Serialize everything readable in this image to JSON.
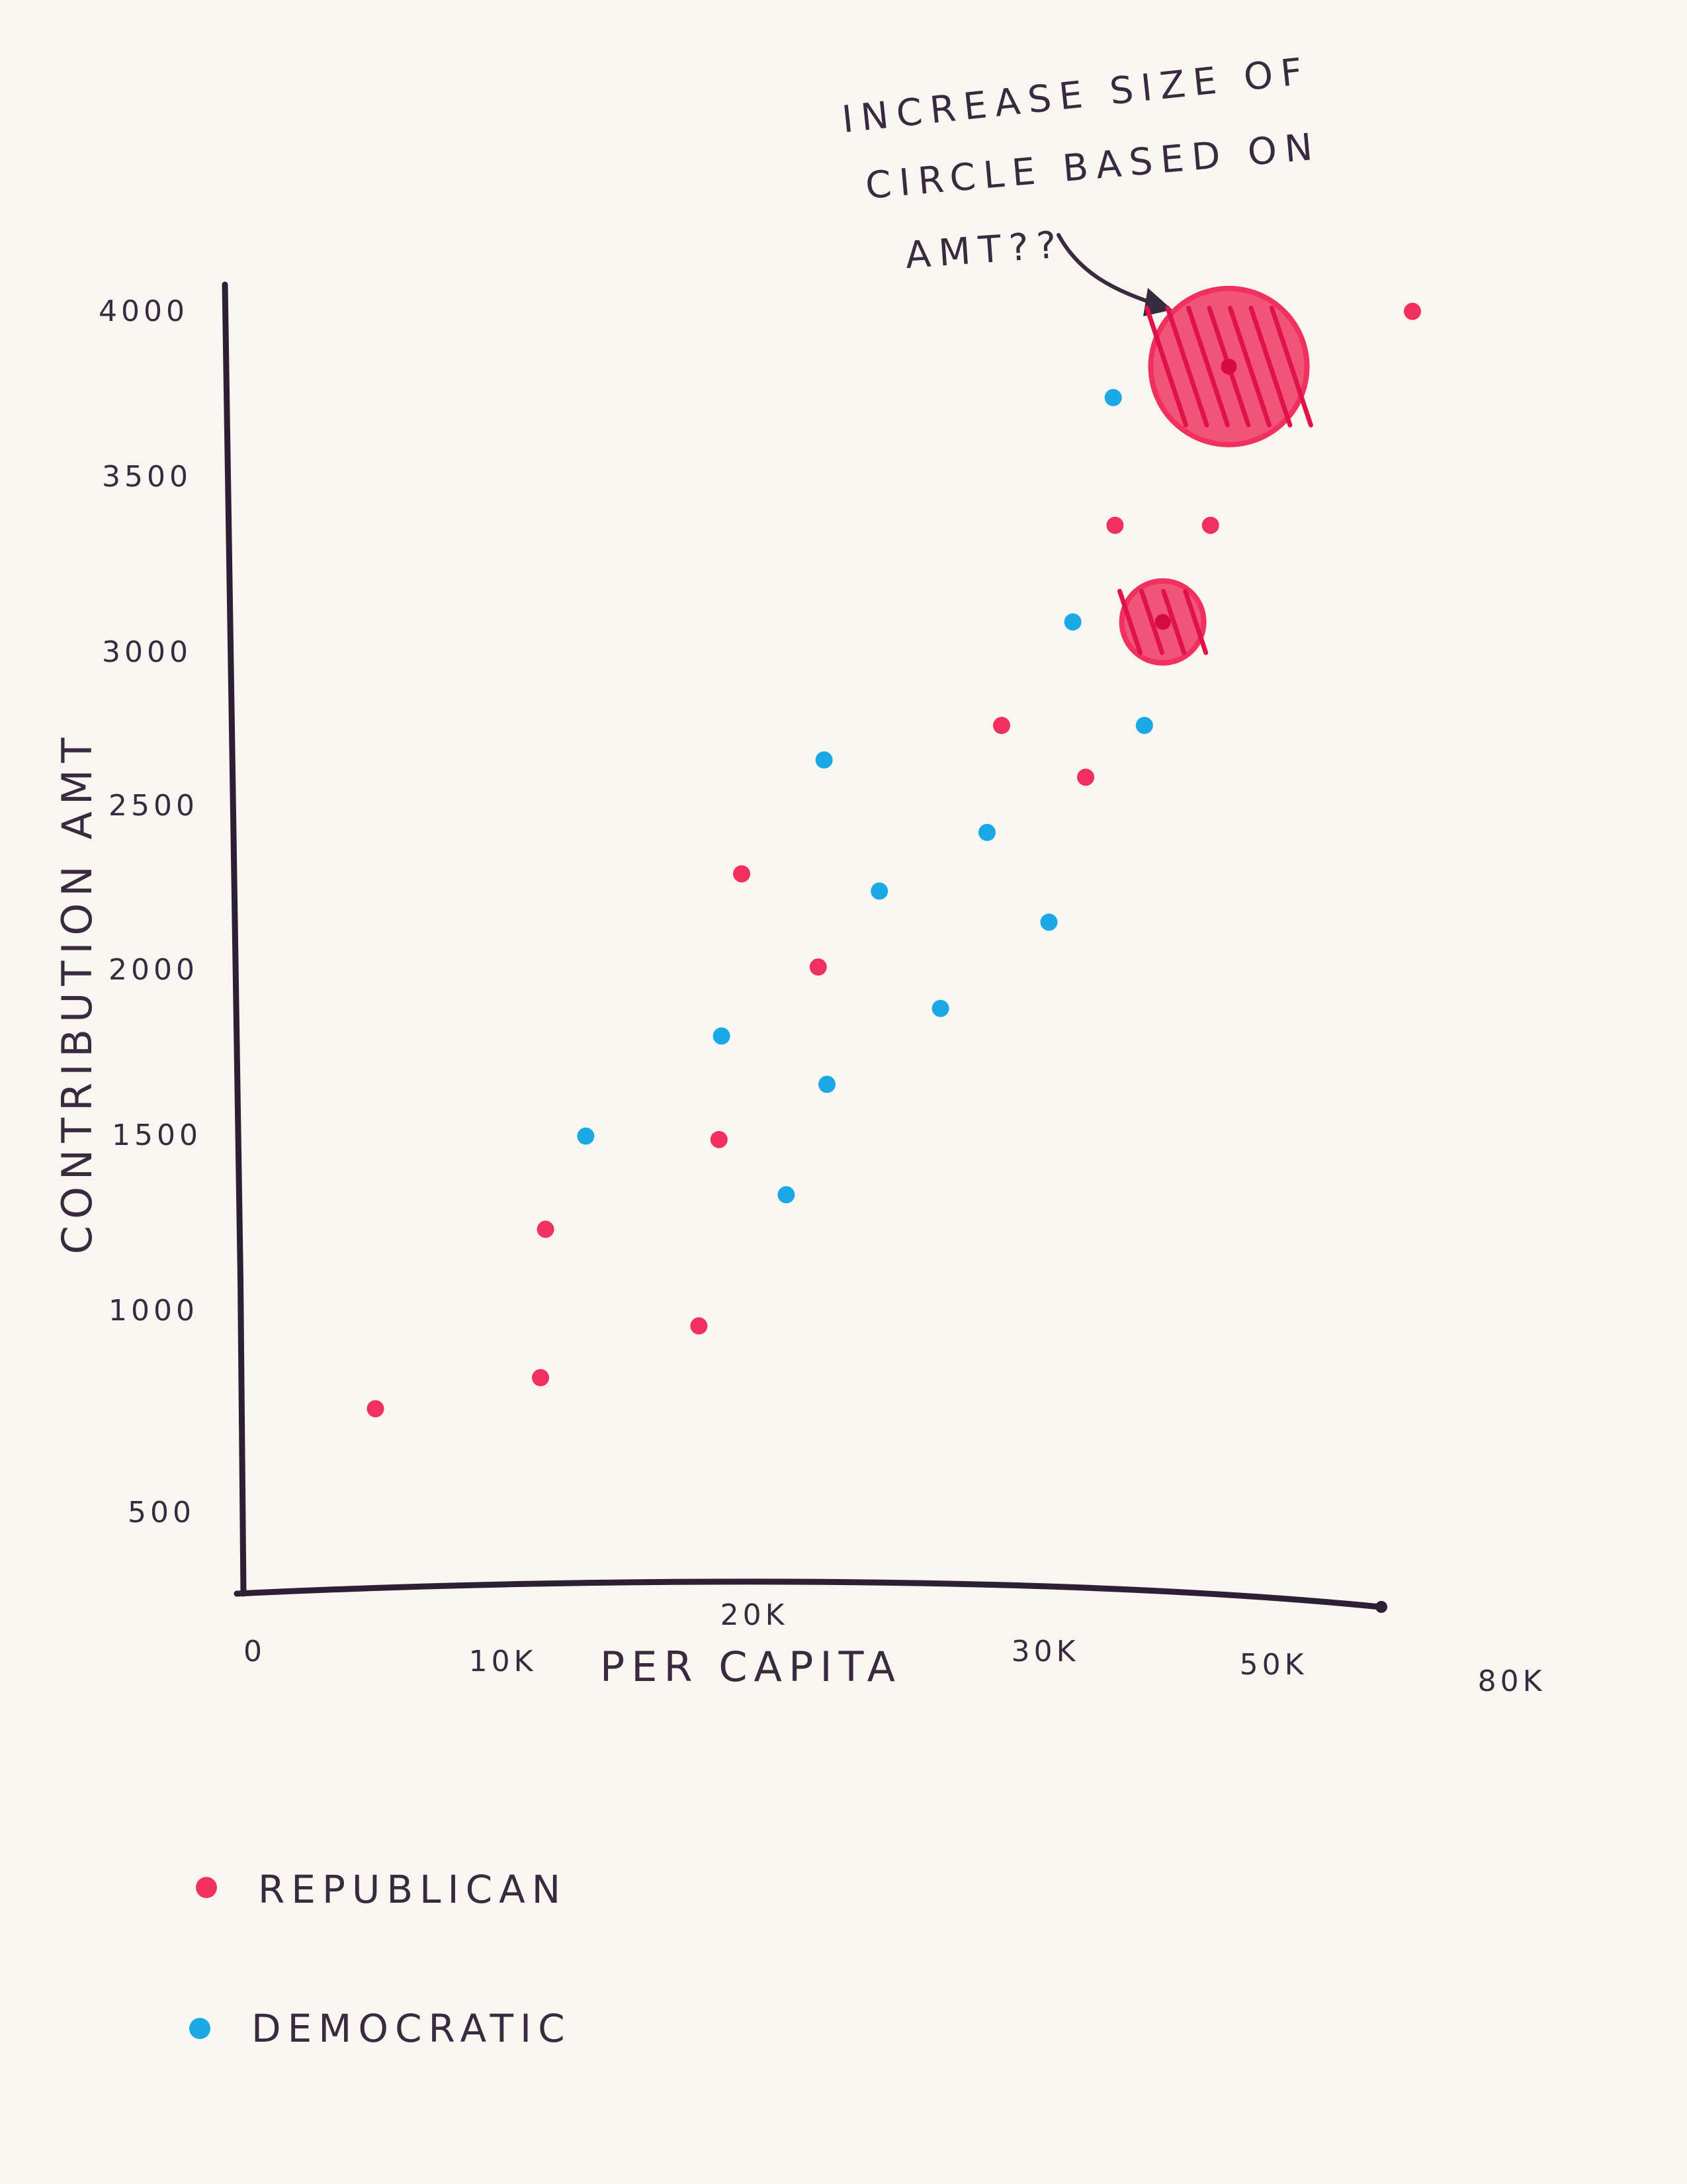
{
  "chart_data": {
    "type": "scatter",
    "title": "",
    "xlabel": "PER CAPITA",
    "ylabel": "CONTRIBUTION AMT",
    "x_ticks": [
      "0",
      "10K",
      "20K",
      "30K",
      "50K",
      "80K"
    ],
    "y_ticks": [
      "500",
      "1000",
      "1500",
      "2000",
      "2500",
      "3000",
      "3500",
      "4000"
    ],
    "legend_position": "bottom-left",
    "annotation": "INCREASE SIZE OF CIRCLE BASED ON AMT??",
    "series": [
      {
        "name": "REPUBLICAN",
        "color": "#f0305e",
        "points": [
          {
            "x": 5000,
            "y": 800
          },
          {
            "x": 11500,
            "y": 890
          },
          {
            "x": 11700,
            "y": 1320
          },
          {
            "x": 17800,
            "y": 1040
          },
          {
            "x": 18600,
            "y": 1580
          },
          {
            "x": 19500,
            "y": 2350
          },
          {
            "x": 22200,
            "y": 2080
          },
          {
            "x": 28500,
            "y": 2780
          },
          {
            "x": 32200,
            "y": 2630
          },
          {
            "x": 33800,
            "y": 3360
          },
          {
            "x": 39000,
            "y": 3360
          },
          {
            "x": 50000,
            "y": 3980
          },
          {
            "x": 40000,
            "y": 3820,
            "highlight": "large"
          },
          {
            "x": 36400,
            "y": 3080,
            "highlight": "medium"
          }
        ]
      },
      {
        "name": "DEMOCRATIC",
        "color": "#1aa8e6",
        "points": [
          {
            "x": 13300,
            "y": 1590
          },
          {
            "x": 18700,
            "y": 1880
          },
          {
            "x": 21100,
            "y": 1420
          },
          {
            "x": 22500,
            "y": 1740
          },
          {
            "x": 22400,
            "y": 2680
          },
          {
            "x": 24300,
            "y": 2300
          },
          {
            "x": 26400,
            "y": 1960
          },
          {
            "x": 28000,
            "y": 2470
          },
          {
            "x": 30200,
            "y": 2210
          },
          {
            "x": 31500,
            "y": 3080
          },
          {
            "x": 33700,
            "y": 3730
          },
          {
            "x": 35400,
            "y": 2780
          }
        ]
      }
    ]
  }
}
